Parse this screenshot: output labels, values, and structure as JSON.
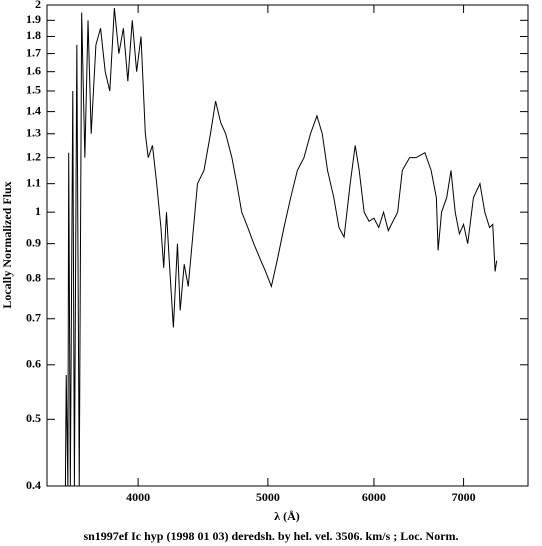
{
  "chart_data": {
    "type": "line",
    "ylabel": "Locally Normalized Flux",
    "xlabel": "λ (Å)",
    "caption": "sn1997ef Ic hyp (1998 01 03) deredsh. by hel. vel.  3506. km/s ;  Loc. Norm.",
    "xscale": "log",
    "yscale": "log",
    "xlim": [
      3420,
      7820
    ],
    "ylim": [
      0.4,
      2
    ],
    "xticks": [
      4000,
      5000,
      6000,
      7000
    ],
    "yticks": [
      0.4,
      0.5,
      0.6,
      0.7,
      0.8,
      0.9,
      1,
      1.1,
      1.2,
      1.3,
      1.4,
      1.5,
      1.6,
      1.7,
      1.8,
      1.9,
      2
    ],
    "color": "#000000",
    "x": [
      3530,
      3535,
      3545,
      3550,
      3560,
      3575,
      3585,
      3600,
      3615,
      3630,
      3650,
      3670,
      3690,
      3720,
      3750,
      3780,
      3810,
      3840,
      3870,
      3900,
      3930,
      3960,
      3990,
      4020,
      4050,
      4070,
      4100,
      4130,
      4160,
      4180,
      4200,
      4220,
      4250,
      4280,
      4300,
      4330,
      4360,
      4400,
      4430,
      4480,
      4530,
      4570,
      4610,
      4650,
      4700,
      4740,
      4780,
      4830,
      4880,
      4940,
      4980,
      5030,
      5080,
      5140,
      5200,
      5260,
      5320,
      5380,
      5440,
      5490,
      5540,
      5600,
      5650,
      5700,
      5760,
      5810,
      5850,
      5900,
      5950,
      6000,
      6050,
      6100,
      6150,
      6200,
      6250,
      6300,
      6380,
      6450,
      6550,
      6620,
      6680,
      6700,
      6740,
      6800,
      6850,
      6900,
      6950,
      7000,
      7050,
      7120,
      7200,
      7260,
      7320,
      7360,
      7390,
      7410
    ],
    "values": [
      0.4,
      0.58,
      0.4,
      1.22,
      0.4,
      1.5,
      0.4,
      1.75,
      0.4,
      1.95,
      1.2,
      1.9,
      1.3,
      1.75,
      1.85,
      1.6,
      1.5,
      1.98,
      1.7,
      1.85,
      1.55,
      1.9,
      1.6,
      1.8,
      1.3,
      1.2,
      1.25,
      1.1,
      0.95,
      0.83,
      1.0,
      0.85,
      0.68,
      0.9,
      0.72,
      0.84,
      0.78,
      0.95,
      1.1,
      1.15,
      1.3,
      1.45,
      1.35,
      1.3,
      1.2,
      1.1,
      1.0,
      0.95,
      0.9,
      0.85,
      0.82,
      0.78,
      0.85,
      0.95,
      1.05,
      1.15,
      1.2,
      1.3,
      1.38,
      1.3,
      1.15,
      1.05,
      0.95,
      0.92,
      1.1,
      1.25,
      1.15,
      1.0,
      0.97,
      0.98,
      0.95,
      1.0,
      0.94,
      0.97,
      1.0,
      1.15,
      1.2,
      1.2,
      1.22,
      1.15,
      1.05,
      0.88,
      1.0,
      1.05,
      1.15,
      1.0,
      0.93,
      0.96,
      0.9,
      1.05,
      1.1,
      1.0,
      0.95,
      0.96,
      0.82,
      0.85
    ]
  }
}
